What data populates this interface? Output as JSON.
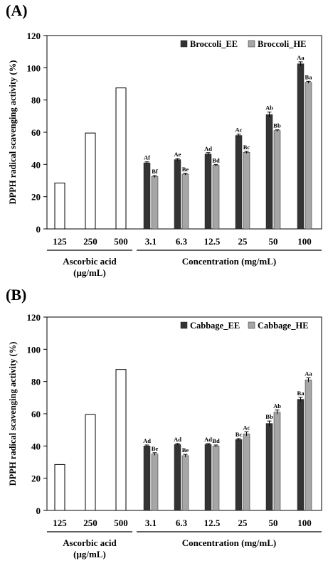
{
  "chart_data": [
    {
      "panel": "(A)",
      "type": "bar",
      "ylabel": "DPPH radical scavenging activity (%)",
      "ylim": [
        0,
        120
      ],
      "yticks": [
        0,
        20,
        40,
        60,
        80,
        100,
        120
      ],
      "grid": false,
      "legend_position": "top-right",
      "reference": {
        "categories": [
          "125",
          "250",
          "500"
        ],
        "values": [
          28.5,
          59.5,
          87.5
        ],
        "group_label": [
          "Ascorbic acid",
          "(μg/mL)"
        ]
      },
      "categories": [
        "3.1",
        "6.3",
        "12.5",
        "25",
        "50",
        "100"
      ],
      "group_label": "Concentration (mg/mL)",
      "series": [
        {
          "name": "Broccoli_EE",
          "color": "#333333",
          "values": [
            41,
            43,
            46.5,
            58,
            71,
            102.5
          ],
          "errors": [
            0.6,
            0.6,
            0.8,
            0.8,
            1.5,
            1.2
          ],
          "labels": [
            "Af",
            "Ae",
            "Ad",
            "Ac",
            "Ab",
            "Aa"
          ]
        },
        {
          "name": "Broccoli_HE",
          "color": "#a6a6a6",
          "values": [
            32.5,
            34,
            39.5,
            47.5,
            61,
            91
          ],
          "errors": [
            0.6,
            0.5,
            0.5,
            0.6,
            0.5,
            0.6
          ],
          "labels": [
            "Bf",
            "Be",
            "Bd",
            "Bc",
            "Bb",
            "Ba"
          ]
        }
      ]
    },
    {
      "panel": "(B)",
      "type": "bar",
      "ylabel": "DPPH radical scavenging activity (%)",
      "ylim": [
        0,
        120
      ],
      "yticks": [
        0,
        20,
        40,
        60,
        80,
        100,
        120
      ],
      "grid": false,
      "legend_position": "top-right",
      "reference": {
        "categories": [
          "125",
          "250",
          "500"
        ],
        "values": [
          28.5,
          59.5,
          87.5
        ],
        "group_label": [
          "Ascorbic acid",
          "(μg/mL)"
        ]
      },
      "categories": [
        "3.1",
        "6.3",
        "12.5",
        "25",
        "50",
        "100"
      ],
      "group_label": "Concentration (mg/mL)",
      "series": [
        {
          "name": "Cabbage_EE",
          "color": "#333333",
          "values": [
            40,
            41,
            41,
            44,
            54,
            69
          ],
          "errors": [
            0.6,
            0.5,
            0.5,
            0.6,
            1.5,
            1.2
          ],
          "labels": [
            "Ad",
            "Ad",
            "Ad",
            "Bc",
            "Bb",
            "Ba"
          ]
        },
        {
          "name": "Cabbage_HE",
          "color": "#a6a6a6",
          "values": [
            35,
            34,
            40,
            47.5,
            61,
            81
          ],
          "errors": [
            0.8,
            0.8,
            0.6,
            1.3,
            1.3,
            1.3
          ],
          "labels": [
            "Be",
            "Be",
            "Bd",
            "Ac",
            "Ab",
            "Aa"
          ]
        }
      ]
    }
  ]
}
